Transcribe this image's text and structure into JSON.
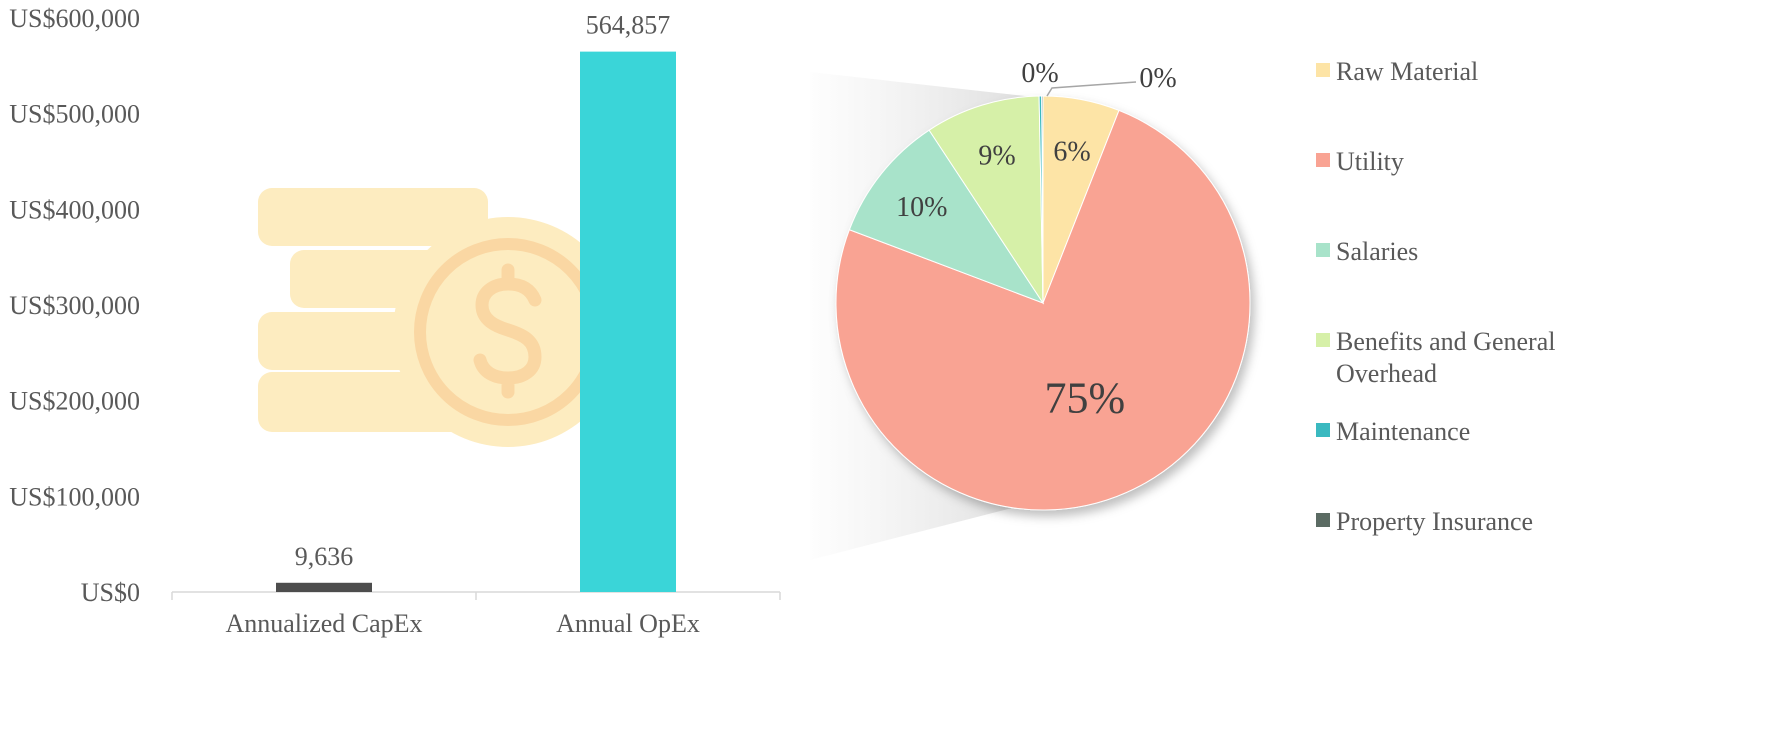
{
  "colors": {
    "capex_bar": "#4d4d4d",
    "opex_bar": "#3ad5d8",
    "axis": "#d9d9d9",
    "coin_fill": "#fdecc0",
    "coin_symbol": "#fad7a3"
  },
  "decorative_icon": "coin-stack-dollar-icon",
  "chart_data": [
    {
      "type": "bar",
      "categories": [
        "Annualized CapEx",
        "Annual OpEx"
      ],
      "values": [
        9636,
        564857
      ],
      "value_labels": [
        "9,636",
        "564,857"
      ],
      "ylim": [
        0,
        600000
      ],
      "yticks": [
        {
          "value": 0,
          "label": "US$0"
        },
        {
          "value": 100000,
          "label": "US$100,000"
        },
        {
          "value": 200000,
          "label": "US$200,000"
        },
        {
          "value": 300000,
          "label": "US$300,000"
        },
        {
          "value": 400000,
          "label": "US$400,000"
        },
        {
          "value": 500000,
          "label": "US$500,000"
        },
        {
          "value": 600000,
          "label": "US$600,000"
        }
      ],
      "grid": false,
      "title": "",
      "xlabel": "",
      "ylabel": ""
    },
    {
      "type": "pie",
      "legend_position": "right",
      "slices": [
        {
          "name": "Raw Material",
          "value": 6,
          "label": "6%",
          "color": "#fde4a6"
        },
        {
          "name": "Utility",
          "value": 75,
          "label": "75%",
          "color": "#f9a393"
        },
        {
          "name": "Salaries",
          "value": 10,
          "label": "10%",
          "color": "#a8e3ca"
        },
        {
          "name": "Benefits and General Overhead",
          "value": 9,
          "label": "9%",
          "color": "#d6f0a8"
        },
        {
          "name": "Maintenance",
          "value": 0.2,
          "label": "0%",
          "color": "#3ab9c0"
        },
        {
          "name": "Property Insurance",
          "value": 0.1,
          "label": "0%",
          "color": "#5b6b63"
        }
      ]
    }
  ]
}
